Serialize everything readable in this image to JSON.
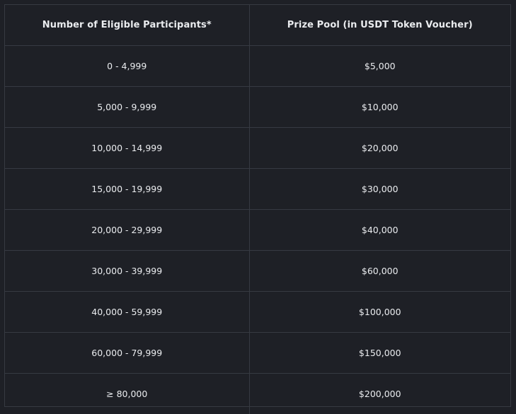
{
  "table": {
    "headers": [
      "Number of Eligible Participants*",
      "Prize Pool (in USDT Token Voucher)"
    ],
    "rows": [
      [
        "0 - 4,999",
        "$5,000"
      ],
      [
        "5,000 - 9,999",
        "$10,000"
      ],
      [
        "10,000 - 14,999",
        "$20,000"
      ],
      [
        "15,000 - 19,999",
        "$30,000"
      ],
      [
        "20,000 - 29,999",
        "$40,000"
      ],
      [
        "30,000 - 39,999",
        "$60,000"
      ],
      [
        "40,000 - 59,999",
        "$100,000"
      ],
      [
        "60,000 - 79,999",
        "$150,000"
      ],
      [
        "≥ 80,000",
        "$200,000"
      ]
    ]
  },
  "colors": {
    "background": "#1e2026",
    "border": "#363a42",
    "text": "#eaecef"
  }
}
